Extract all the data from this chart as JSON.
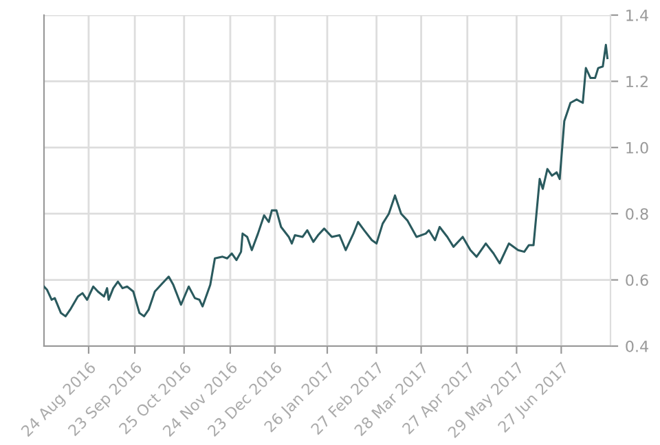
{
  "chart_data": {
    "type": "line",
    "x": [
      "2016-07-26",
      "2016-07-28",
      "2016-07-31",
      "2016-08-02",
      "2016-08-06",
      "2016-08-09",
      "2016-08-12",
      "2016-08-17",
      "2016-08-20",
      "2016-08-23",
      "2016-08-27",
      "2016-08-30",
      "2016-09-03",
      "2016-09-05",
      "2016-09-06",
      "2016-09-09",
      "2016-09-12",
      "2016-09-15",
      "2016-09-18",
      "2016-09-22",
      "2016-09-26",
      "2016-09-29",
      "2016-10-02",
      "2016-10-06",
      "2016-10-10",
      "2016-10-15",
      "2016-10-18",
      "2016-10-23",
      "2016-10-28",
      "2016-11-01",
      "2016-11-04",
      "2016-11-06",
      "2016-11-11",
      "2016-11-14",
      "2016-11-19",
      "2016-11-22",
      "2016-11-25",
      "2016-11-28",
      "2016-12-01",
      "2016-12-02",
      "2016-12-05",
      "2016-12-08",
      "2016-12-12",
      "2016-12-16",
      "2016-12-19",
      "2016-12-21",
      "2016-12-24",
      "2016-12-27",
      "2017-01-01",
      "2017-01-03",
      "2017-01-05",
      "2017-01-10",
      "2017-01-13",
      "2017-01-17",
      "2017-01-20",
      "2017-01-24",
      "2017-01-29",
      "2017-02-03",
      "2017-02-07",
      "2017-02-12",
      "2017-02-15",
      "2017-02-19",
      "2017-02-24",
      "2017-02-27",
      "2017-03-03",
      "2017-03-07",
      "2017-03-11",
      "2017-03-15",
      "2017-03-19",
      "2017-03-25",
      "2017-03-31",
      "2017-04-02",
      "2017-04-06",
      "2017-04-09",
      "2017-04-14",
      "2017-04-18",
      "2017-04-24",
      "2017-04-29",
      "2017-05-03",
      "2017-05-09",
      "2017-05-14",
      "2017-05-18",
      "2017-05-24",
      "2017-05-30",
      "2017-06-03",
      "2017-06-06",
      "2017-06-09",
      "2017-06-13",
      "2017-06-15",
      "2017-06-18",
      "2017-06-21",
      "2017-06-24",
      "2017-06-26",
      "2017-06-29",
      "2017-07-03",
      "2017-07-07",
      "2017-07-11",
      "2017-07-13",
      "2017-07-16",
      "2017-07-19",
      "2017-07-21",
      "2017-07-24",
      "2017-07-26",
      "2017-07-27"
    ],
    "series": [
      {
        "color": "#2a5a5e",
        "values": [
          0.58,
          0.57,
          0.54,
          0.545,
          0.5,
          0.49,
          0.51,
          0.55,
          0.56,
          0.54,
          0.58,
          0.565,
          0.55,
          0.575,
          0.54,
          0.575,
          0.595,
          0.575,
          0.58,
          0.565,
          0.5,
          0.49,
          0.51,
          0.565,
          0.585,
          0.61,
          0.585,
          0.525,
          0.58,
          0.545,
          0.54,
          0.52,
          0.585,
          0.665,
          0.67,
          0.665,
          0.68,
          0.66,
          0.685,
          0.74,
          0.73,
          0.69,
          0.74,
          0.795,
          0.775,
          0.81,
          0.81,
          0.76,
          0.73,
          0.71,
          0.735,
          0.73,
          0.75,
          0.715,
          0.735,
          0.755,
          0.73,
          0.735,
          0.69,
          0.74,
          0.775,
          0.75,
          0.72,
          0.71,
          0.77,
          0.8,
          0.855,
          0.8,
          0.78,
          0.73,
          0.74,
          0.75,
          0.72,
          0.76,
          0.73,
          0.7,
          0.73,
          0.69,
          0.67,
          0.71,
          0.68,
          0.65,
          0.71,
          0.69,
          0.685,
          0.705,
          0.705,
          0.905,
          0.875,
          0.935,
          0.915,
          0.925,
          0.905,
          1.08,
          1.135,
          1.145,
          1.135,
          1.24,
          1.21,
          1.21,
          1.24,
          1.245,
          1.31,
          1.27
        ]
      }
    ],
    "xlim": [
      "2016-07-26",
      "2017-07-29"
    ],
    "xticks": [
      {
        "value": "2016-08-24",
        "label": "24 Aug 2016"
      },
      {
        "value": "2016-09-23",
        "label": "23 Sep 2016"
      },
      {
        "value": "2016-10-25",
        "label": "25 Oct 2016"
      },
      {
        "value": "2016-11-24",
        "label": "24 Nov 2016"
      },
      {
        "value": "2016-12-23",
        "label": "23 Dec 2016"
      },
      {
        "value": "2017-01-26",
        "label": "26 Jan 2017"
      },
      {
        "value": "2017-02-27",
        "label": "27 Feb 2017"
      },
      {
        "value": "2017-03-28",
        "label": "28 Mar 2017"
      },
      {
        "value": "2017-04-27",
        "label": "27 Apr 2017"
      },
      {
        "value": "2017-05-29",
        "label": "29 May 2017"
      },
      {
        "value": "2017-06-27",
        "label": "27 Jun 2017"
      }
    ],
    "ylim": [
      0.4,
      1.4
    ],
    "yticks": [
      {
        "value": 0.4,
        "label": "0.4"
      },
      {
        "value": 0.6,
        "label": "0.6"
      },
      {
        "value": 0.8,
        "label": "0.8"
      },
      {
        "value": 1.0,
        "label": "1.0"
      },
      {
        "value": 1.2,
        "label": "1.2"
      },
      {
        "value": 1.4,
        "label": "1.4"
      }
    ],
    "grid": true,
    "marker": "none",
    "line_style": "solid"
  }
}
